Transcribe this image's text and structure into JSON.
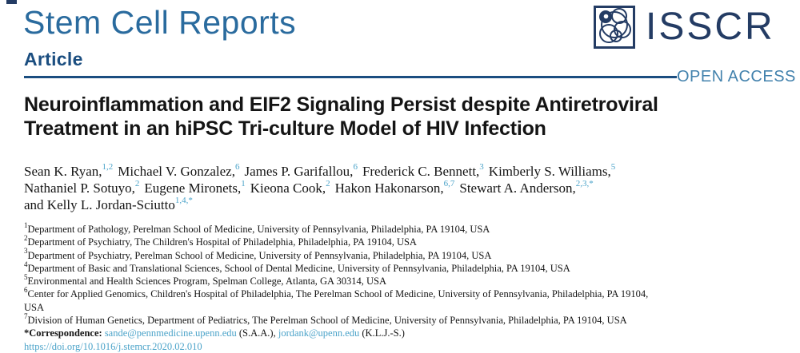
{
  "colors": {
    "journal_blue": "#2a6b9e",
    "navy": "#1b4e80",
    "logo_navy": "#243c64",
    "open_access_blue": "#4382ad",
    "link_blue": "#4ba3c9",
    "text_black": "#141414"
  },
  "masthead": {
    "journal": "Stem Cell Reports",
    "section": "Article",
    "logo_text": "ISSCR",
    "logo_icon": "isscr-cell-logo",
    "open_access": "OPEN ACCESS"
  },
  "article": {
    "title_lines": [
      "Neuroinflammation and EIF2 Signaling Persist despite Antiretroviral",
      "Treatment in an hiPSC Tri-culture Model of HIV Infection"
    ],
    "author_lines": [
      [
        {
          "name": "Sean K. Ryan,",
          "sup": "1,2"
        },
        {
          "name": "Michael V. Gonzalez,",
          "sup": "6"
        },
        {
          "name": "James P. Garifallou,",
          "sup": "6"
        },
        {
          "name": "Frederick C. Bennett,",
          "sup": "3"
        },
        {
          "name": "Kimberly S. Williams,",
          "sup": "5"
        }
      ],
      [
        {
          "name": "Nathaniel P. Sotuyo,",
          "sup": "2"
        },
        {
          "name": "Eugene Mironets,",
          "sup": "1"
        },
        {
          "name": "Kieona Cook,",
          "sup": "2"
        },
        {
          "name": "Hakon Hakonarson,",
          "sup": "6,7"
        },
        {
          "name": "Stewart A. Anderson,",
          "sup": "2,3,*"
        }
      ],
      [
        {
          "name": "and Kelly L. Jordan-Sciutto",
          "sup": "1,4,*"
        }
      ]
    ],
    "affiliations": [
      {
        "num": "1",
        "text": "Department of Pathology, Perelman School of Medicine, University of Pennsylvania, Philadelphia, PA 19104, USA"
      },
      {
        "num": "2",
        "text": "Department of Psychiatry, The Children's Hospital of Philadelphia, Philadelphia, PA 19104, USA"
      },
      {
        "num": "3",
        "text": "Department of Psychiatry, Perelman School of Medicine, University of Pennsylvania, Philadelphia, PA 19104, USA"
      },
      {
        "num": "4",
        "text": "Department of Basic and Translational Sciences, School of Dental Medicine, University of Pennsylvania, Philadelphia, PA 19104, USA"
      },
      {
        "num": "5",
        "text": "Environmental and Health Sciences Program, Spelman College, Atlanta, GA 30314, USA"
      },
      {
        "num": "6",
        "text": "Center for Applied Genomics, Children's Hospital of Philadelphia, The Perelman School of Medicine, University of Pennsylvania, Philadelphia, PA 19104,\nUSA"
      },
      {
        "num": "7",
        "text": "Division of Human Genetics, Department of Pediatrics, The Perelman School of Medicine, University of Pennsylvania, Philadelphia, PA 19104, USA"
      }
    ],
    "correspondence": {
      "parts": [
        {
          "text": "*Correspondence: ",
          "link": false,
          "bold": true
        },
        {
          "text": "sande@pennmedicine.upenn.edu",
          "link": true,
          "bold": false
        },
        {
          "text": " (S.A.A.), ",
          "link": false,
          "bold": false
        },
        {
          "text": "jordank@upenn.edu",
          "link": true,
          "bold": false
        },
        {
          "text": " (K.L.J.-S.)",
          "link": false,
          "bold": false
        }
      ]
    },
    "doi": "https://doi.org/10.1016/j.stemcr.2020.02.010"
  }
}
